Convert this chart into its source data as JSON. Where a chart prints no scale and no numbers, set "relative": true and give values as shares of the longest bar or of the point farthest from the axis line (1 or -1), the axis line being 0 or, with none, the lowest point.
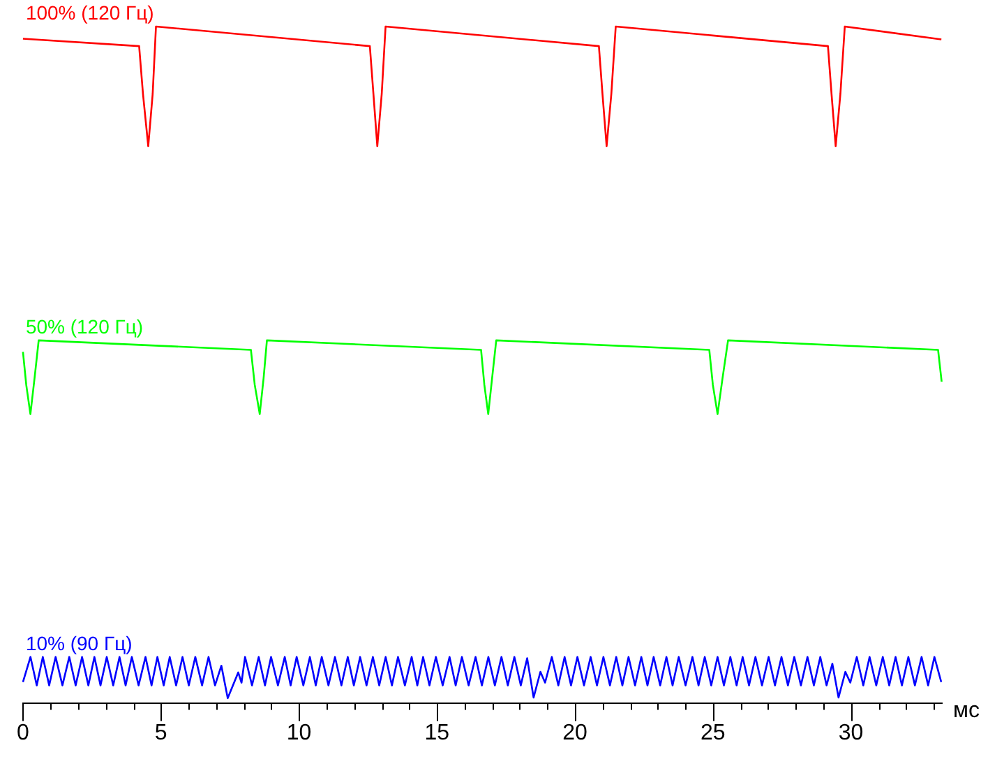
{
  "chart_data": {
    "type": "line",
    "relative": true,
    "xlabel": "мс",
    "xlim": [
      0,
      33.3
    ],
    "xticks": [
      0,
      {
        "value": 1,
        "label": null
      },
      {
        "value": 2,
        "label": null
      },
      {
        "value": 3,
        "label": null
      },
      {
        "value": 4,
        "label": null
      },
      5,
      {
        "value": 6,
        "label": null
      },
      {
        "value": 7,
        "label": null
      },
      {
        "value": 8,
        "label": null
      },
      {
        "value": 9,
        "label": null
      },
      10,
      {
        "value": 11,
        "label": null
      },
      {
        "value": 12,
        "label": null
      },
      {
        "value": 13,
        "label": null
      },
      {
        "value": 14,
        "label": null
      },
      15,
      {
        "value": 16,
        "label": null
      },
      {
        "value": 17,
        "label": null
      },
      {
        "value": 18,
        "label": null
      },
      {
        "value": 19,
        "label": null
      },
      20,
      {
        "value": 21,
        "label": null
      },
      {
        "value": 22,
        "label": null
      },
      {
        "value": 23,
        "label": null
      },
      {
        "value": 24,
        "label": null
      },
      25,
      {
        "value": 26,
        "label": null
      },
      {
        "value": 27,
        "label": null
      },
      {
        "value": 28,
        "label": null
      },
      {
        "value": 29,
        "label": null
      },
      30,
      {
        "value": 31,
        "label": null
      },
      {
        "value": 32,
        "label": null
      },
      {
        "value": 33,
        "label": null
      }
    ],
    "tick_labels": "x",
    "grid": false,
    "legend": false,
    "marker": "none",
    "line_style": "solid",
    "series": [
      {
        "name": "100% (120 Гц)",
        "color": "#ff0000",
        "x": [
          0,
          4.21,
          4.35,
          4.54,
          4.7,
          4.82,
          12.57,
          12.7,
          12.84,
          13.0,
          13.14,
          20.87,
          21.0,
          21.15,
          21.32,
          21.48,
          29.17,
          29.3,
          29.45,
          29.62,
          29.78,
          33.28
        ],
        "values": [
          0.982,
          0.971,
          0.9,
          0.823,
          0.9,
          1,
          0.971,
          0.9,
          0.823,
          0.9,
          1,
          0.971,
          0.9,
          0.823,
          0.9,
          1,
          0.971,
          0.9,
          0.823,
          0.9,
          1,
          0.981
        ]
      },
      {
        "name": "50% (120 Гц)",
        "color": "#00ff00",
        "x": [
          0,
          0.12,
          0.27,
          0.42,
          0.57,
          8.26,
          8.4,
          8.58,
          8.72,
          8.84,
          16.6,
          16.72,
          16.86,
          17.0,
          17.15,
          24.87,
          25.0,
          25.17,
          25.35,
          25.55,
          33.16,
          33.29
        ],
        "values": [
          0.519,
          0.47,
          0.427,
          0.48,
          0.536,
          0.522,
          0.47,
          0.427,
          0.48,
          0.536,
          0.522,
          0.47,
          0.427,
          0.48,
          0.536,
          0.522,
          0.47,
          0.427,
          0.48,
          0.536,
          0.522,
          0.475
        ]
      },
      {
        "name": "10% (90 Гц)",
        "color": "#0000ff",
        "x": [
          0,
          0.273,
          0.5,
          0.72,
          0.95,
          1.183,
          1.43,
          1.679,
          1.91,
          2.142,
          2.37,
          2.589,
          2.81,
          3.036,
          3.27,
          3.499,
          3.72,
          3.945,
          4.19,
          4.442,
          4.66,
          4.872,
          5.1,
          5.319,
          5.55,
          5.782,
          6.01,
          6.245,
          6.49,
          6.725,
          6.96,
          7.19,
          7.42,
          7.8,
          7.92,
          8.048,
          8.3,
          8.544,
          8.77,
          8.99,
          9.24,
          9.487,
          9.7,
          9.917,
          10.16,
          10.397,
          10.61,
          10.827,
          11.07,
          11.307,
          11.54,
          11.77,
          11.99,
          12.217,
          12.45,
          12.68,
          12.91,
          13.143,
          13.37,
          13.59,
          13.84,
          14.086,
          14.29,
          14.5,
          14.73,
          14.963,
          15.21,
          15.459,
          15.68,
          15.906,
          16.15,
          16.402,
          16.63,
          16.865,
          17.1,
          17.34,
          17.57,
          17.808,
          18.04,
          18.271,
          18.503,
          18.751,
          18.92,
          19.165,
          19.4,
          19.628,
          19.86,
          20.091,
          20.33,
          20.571,
          20.8,
          21.034,
          21.27,
          21.498,
          21.72,
          21.944,
          22.18,
          22.407,
          22.63,
          22.854,
          23.09,
          23.317,
          23.54,
          23.763,
          24.01,
          24.26,
          24.48,
          24.706,
          24.94,
          25.17,
          25.4,
          25.633,
          25.86,
          26.079,
          26.31,
          26.543,
          26.78,
          27.022,
          27.25,
          27.486,
          27.72,
          27.949,
          28.19,
          28.429,
          28.66,
          28.892,
          29.12,
          29.33,
          29.553,
          29.801,
          29.98,
          30.215,
          30.45,
          30.678,
          30.92,
          31.158,
          31.39,
          31.621,
          31.85,
          32.084,
          32.32,
          32.564,
          32.8,
          33.027,
          33.275
        ],
        "values": [
          0.031,
          0.068,
          0.026,
          0.068,
          0.026,
          0.068,
          0.026,
          0.068,
          0.026,
          0.068,
          0.026,
          0.068,
          0.026,
          0.068,
          0.026,
          0.068,
          0.026,
          0.068,
          0.026,
          0.068,
          0.026,
          0.068,
          0.026,
          0.068,
          0.026,
          0.068,
          0.026,
          0.068,
          0.026,
          0.068,
          0.026,
          0.055,
          0.007,
          0.045,
          0.03,
          0.068,
          0.026,
          0.068,
          0.026,
          0.068,
          0.026,
          0.068,
          0.026,
          0.068,
          0.026,
          0.068,
          0.026,
          0.068,
          0.026,
          0.068,
          0.026,
          0.068,
          0.026,
          0.068,
          0.026,
          0.068,
          0.026,
          0.068,
          0.026,
          0.068,
          0.026,
          0.068,
          0.026,
          0.068,
          0.026,
          0.068,
          0.026,
          0.068,
          0.026,
          0.068,
          0.026,
          0.068,
          0.026,
          0.068,
          0.026,
          0.068,
          0.026,
          0.068,
          0.026,
          0.066,
          0.008,
          0.046,
          0.03,
          0.068,
          0.026,
          0.068,
          0.026,
          0.068,
          0.026,
          0.068,
          0.026,
          0.068,
          0.026,
          0.068,
          0.026,
          0.068,
          0.026,
          0.068,
          0.026,
          0.068,
          0.026,
          0.068,
          0.026,
          0.068,
          0.026,
          0.068,
          0.026,
          0.068,
          0.026,
          0.068,
          0.026,
          0.068,
          0.026,
          0.068,
          0.026,
          0.068,
          0.026,
          0.068,
          0.026,
          0.068,
          0.026,
          0.068,
          0.026,
          0.068,
          0.026,
          0.068,
          0.026,
          0.058,
          0.008,
          0.046,
          0.03,
          0.068,
          0.026,
          0.068,
          0.026,
          0.068,
          0.026,
          0.068,
          0.026,
          0.068,
          0.026,
          0.068,
          0.026,
          0.068,
          0.031
        ]
      }
    ]
  }
}
